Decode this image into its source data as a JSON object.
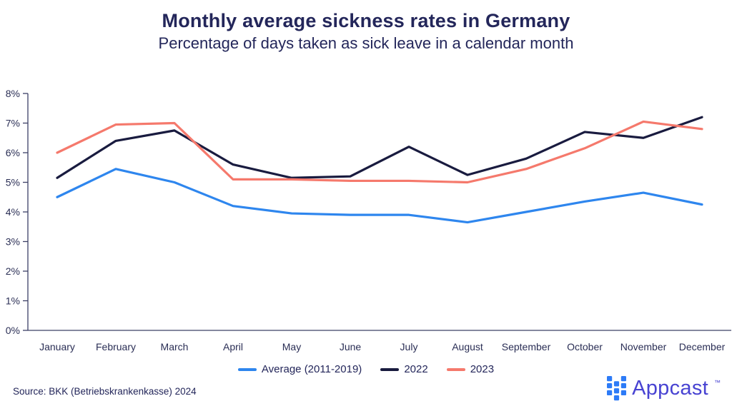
{
  "header": {
    "title": "Monthly average sickness rates in Germany",
    "subtitle": "Percentage of days taken as sick leave in a calendar month"
  },
  "chart_data": {
    "type": "line",
    "title": "Monthly average sickness rates in Germany",
    "subtitle": "Percentage of days taken as sick leave in a calendar month",
    "categories": [
      "January",
      "February",
      "March",
      "April",
      "May",
      "June",
      "July",
      "August",
      "September",
      "October",
      "November",
      "December"
    ],
    "yticks": [
      "0%",
      "1%",
      "2%",
      "3%",
      "4%",
      "5%",
      "6%",
      "7%",
      "8%"
    ],
    "ylim": [
      0,
      8
    ],
    "grid": false,
    "legend_position": "bottom",
    "series": [
      {
        "name": "Average (2011-2019)",
        "color": "#2E86EE",
        "values": [
          4.5,
          5.45,
          5.0,
          4.2,
          3.95,
          3.9,
          3.9,
          3.65,
          4.0,
          4.35,
          4.65,
          4.25
        ]
      },
      {
        "name": "2022",
        "color": "#191B3F",
        "values": [
          5.15,
          6.4,
          6.75,
          5.6,
          5.15,
          5.2,
          6.2,
          5.25,
          5.8,
          6.7,
          6.5,
          7.2
        ]
      },
      {
        "name": "2023",
        "color": "#F5796C",
        "values": [
          6.0,
          6.95,
          7.0,
          5.1,
          5.1,
          5.05,
          5.05,
          5.0,
          5.45,
          6.15,
          7.05,
          6.8
        ]
      }
    ]
  },
  "footer": {
    "source": "Source: BKK (Betriebskrankenkasse) 2024",
    "logo_text": "Appcast",
    "logo_tm": "™"
  },
  "colors": {
    "text": "#23265A",
    "axis": "#3C4066",
    "logo_icon": "#2D7BF7",
    "logo_text": "#4843D2"
  }
}
